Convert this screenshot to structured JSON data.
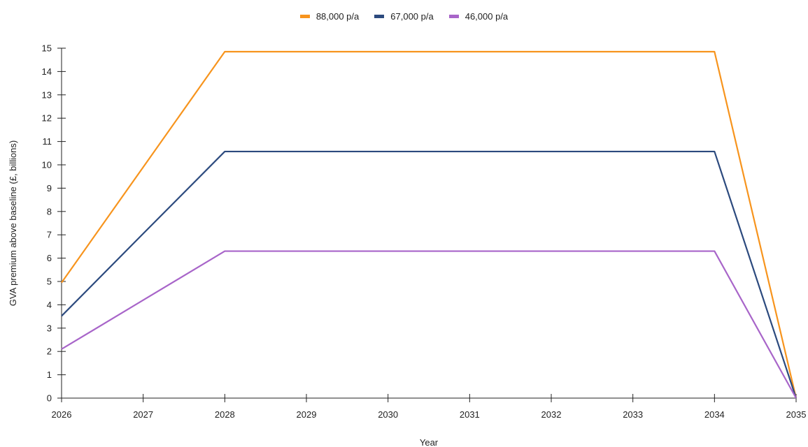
{
  "chart_data": {
    "type": "line",
    "x": [
      2026,
      2027,
      2028,
      2029,
      2030,
      2031,
      2032,
      2033,
      2034,
      2035
    ],
    "xlabel": "Year",
    "ylabel": "GVA premium above baseline (£, billions)",
    "ylim": [
      0,
      15
    ],
    "xlim": [
      2026,
      2035
    ],
    "yticks": [
      0,
      1,
      2,
      3,
      4,
      5,
      6,
      7,
      8,
      9,
      10,
      11,
      12,
      13,
      14,
      15
    ],
    "grid": false,
    "legend_position": "top-center",
    "series": [
      {
        "name": "88,000 p/a",
        "color": "#f7941d",
        "values": [
          4.95,
          9.9,
          14.85,
          14.85,
          14.85,
          14.85,
          14.85,
          14.85,
          14.85,
          0
        ]
      },
      {
        "name": "67,000 p/a",
        "color": "#2c4a7e",
        "values": [
          3.52,
          7.05,
          10.57,
          10.57,
          10.57,
          10.57,
          10.57,
          10.57,
          10.57,
          0
        ]
      },
      {
        "name": "46,000 p/a",
        "color": "#a865c9",
        "values": [
          2.1,
          4.2,
          6.3,
          6.3,
          6.3,
          6.3,
          6.3,
          6.3,
          6.3,
          0
        ]
      }
    ]
  }
}
